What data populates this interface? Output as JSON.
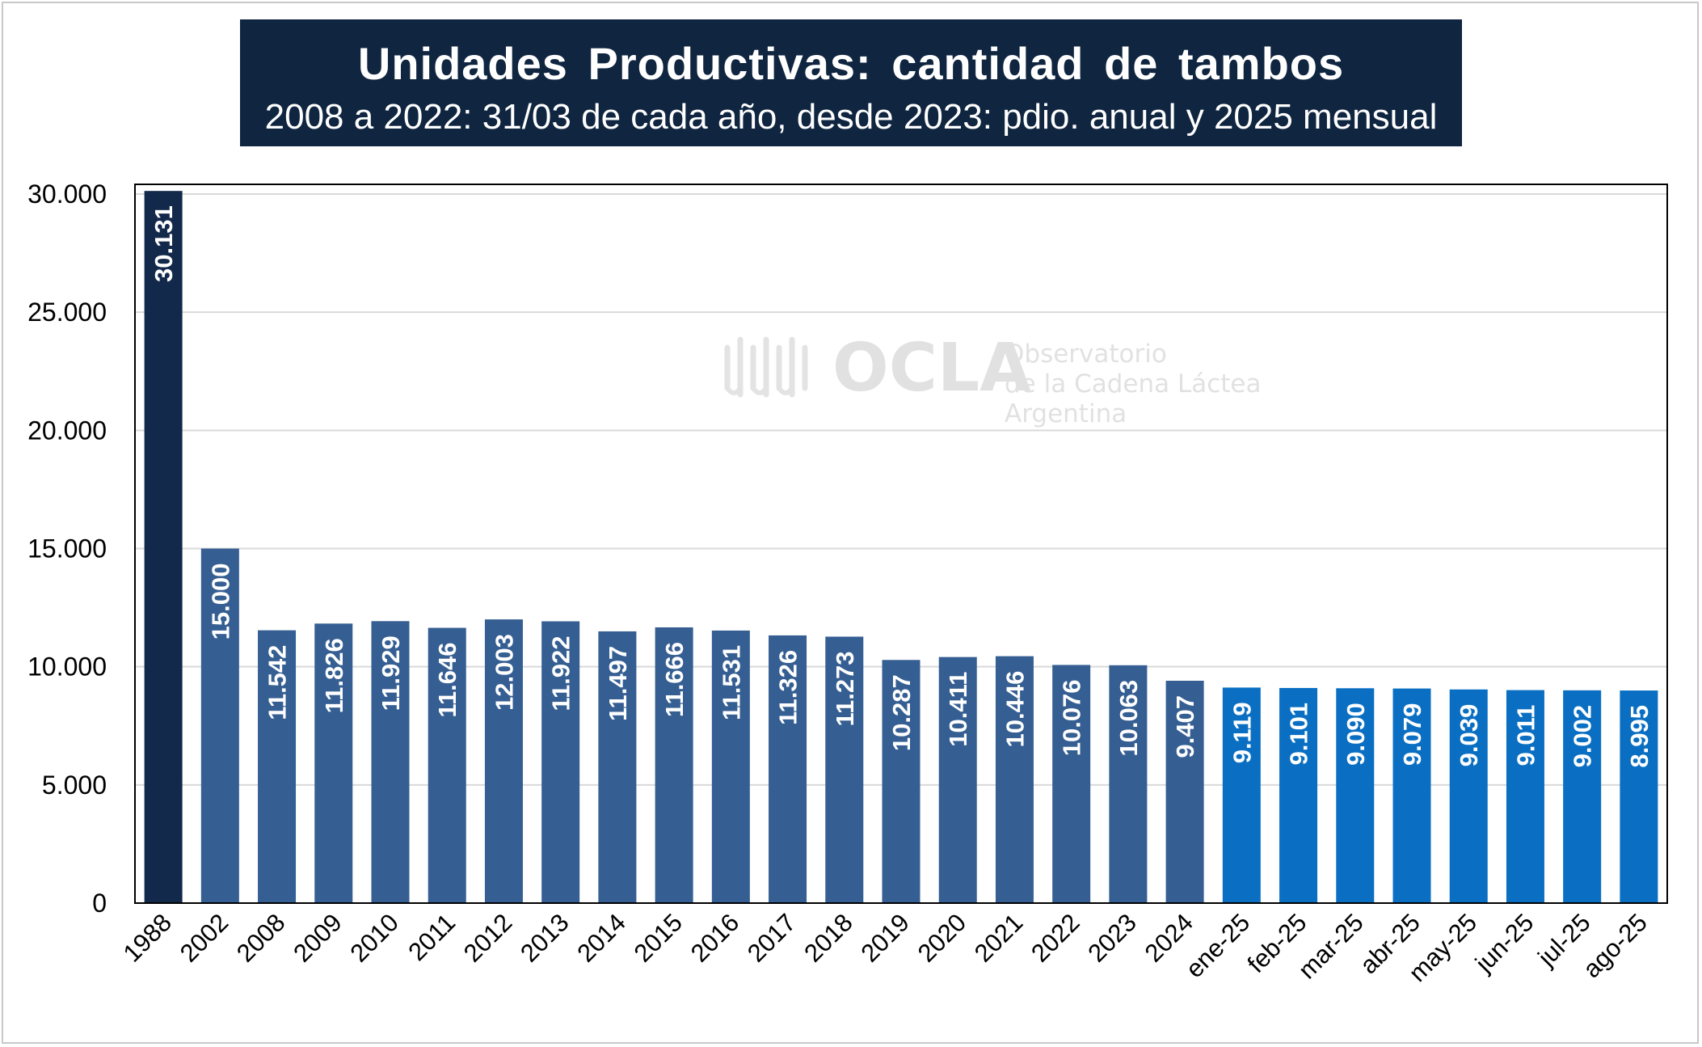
{
  "title": "Unidades Productivas: cantidad de tambos",
  "subtitle": "2008 a 2022: 31/03 de cada año, desde 2023: pdio. anual y 2025 mensual",
  "watermark": {
    "logo_text": "OCLA",
    "line1": "Observatorio",
    "line2": "de la Cadena Láctea",
    "line3": "Argentina"
  },
  "colors": {
    "title_bg": "#0f2540",
    "bar_1988": "#13294b",
    "bar_annual": "#355e92",
    "bar_monthly": "#0a6fc2",
    "grid": "#d9d9d9",
    "label_text": "#ffffff"
  },
  "chart_data": {
    "type": "bar",
    "title": "Unidades Productivas: cantidad de tambos",
    "subtitle": "2008 a 2022: 31/03 de cada año, desde 2023: pdio. anual y 2025 mensual",
    "categories": [
      "1988",
      "2002",
      "2008",
      "2009",
      "2010",
      "2011",
      "2012",
      "2013",
      "2014",
      "2015",
      "2016",
      "2017",
      "2018",
      "2019",
      "2020",
      "2021",
      "2022",
      "2023",
      "2024",
      "ene-25",
      "feb-25",
      "mar-25",
      "abr-25",
      "may-25",
      "jun-25",
      "jul-25",
      "ago-25"
    ],
    "values": [
      30131,
      15000,
      11542,
      11826,
      11929,
      11646,
      12003,
      11922,
      11497,
      11666,
      11531,
      11326,
      11273,
      10287,
      10411,
      10446,
      10076,
      10063,
      9407,
      9119,
      9101,
      9090,
      9079,
      9039,
      9011,
      9002,
      8995
    ],
    "value_labels": [
      "30.131",
      "15.000",
      "11.542",
      "11.826",
      "11.929",
      "11.646",
      "12.003",
      "11.922",
      "11.497",
      "11.666",
      "11.531",
      "11.326",
      "11.273",
      "10.287",
      "10.411",
      "10.446",
      "10.076",
      "10.063",
      "9.407",
      "9.119",
      "9.101",
      "9.090",
      "9.079",
      "9.039",
      "9.011",
      "9.002",
      "8.995"
    ],
    "color_groups": [
      "bar_1988",
      "bar_annual",
      "bar_annual",
      "bar_annual",
      "bar_annual",
      "bar_annual",
      "bar_annual",
      "bar_annual",
      "bar_annual",
      "bar_annual",
      "bar_annual",
      "bar_annual",
      "bar_annual",
      "bar_annual",
      "bar_annual",
      "bar_annual",
      "bar_annual",
      "bar_annual",
      "bar_annual",
      "bar_monthly",
      "bar_monthly",
      "bar_monthly",
      "bar_monthly",
      "bar_monthly",
      "bar_monthly",
      "bar_monthly",
      "bar_monthly"
    ],
    "y_ticks": [
      0,
      5000,
      10000,
      15000,
      20000,
      25000,
      30000
    ],
    "y_tick_labels": [
      "0",
      "5.000",
      "10.000",
      "15.000",
      "20.000",
      "25.000",
      "30.000"
    ],
    "ylim": [
      0,
      30000
    ],
    "grid": true,
    "legend": "none"
  }
}
